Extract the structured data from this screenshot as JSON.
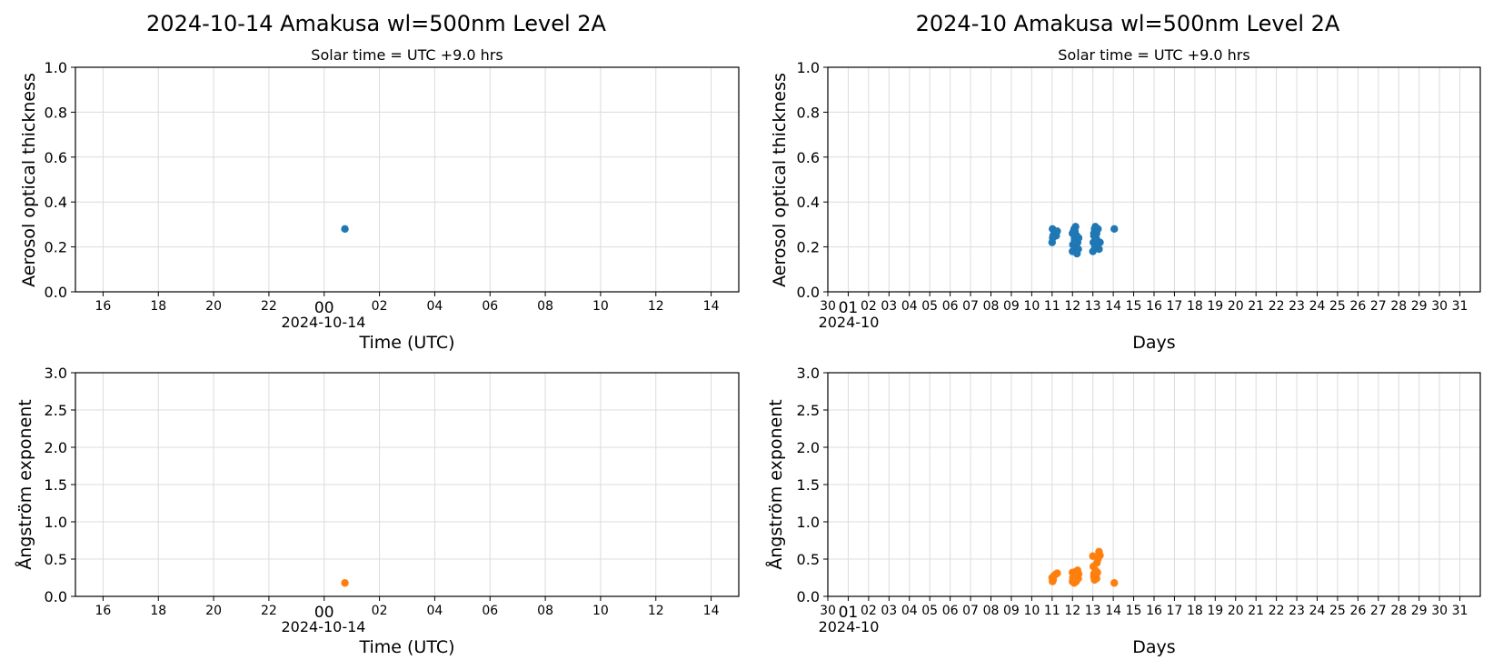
{
  "colors": {
    "aot": "#1f77b4",
    "angstrom": "#ff7f0e",
    "grid": "#dcdcdc"
  },
  "chart_data": [
    {
      "type": "scatter",
      "title": "2024-10-14  Amakusa  wl=500nm  Level 2A",
      "subtitle": "Solar time = UTC +9.0 hrs",
      "xlabel": "Time (UTC)",
      "ylabel": "Aerosol optical thickness",
      "x_unit": "hours relative to 2024-10-14 00:00 UTC",
      "xlim": [
        -9,
        15
      ],
      "ylim": [
        0,
        1
      ],
      "yticks": [
        "0.0",
        "0.2",
        "0.4",
        "0.6",
        "0.8",
        "1.0"
      ],
      "xticks": [
        "16",
        "18",
        "20",
        "22",
        "00",
        "02",
        "04",
        "06",
        "08",
        "10",
        "12",
        "14"
      ],
      "x_date_label": "2024-10-14",
      "grid": true,
      "series": [
        {
          "x": [
            0.75
          ],
          "y": [
            0.28
          ]
        }
      ]
    },
    {
      "type": "scatter",
      "title": "2024-10  Amakusa  wl=500nm  Level 2A",
      "subtitle": "Solar time = UTC +9.0 hrs",
      "xlabel": "Days",
      "ylabel": "Aerosol optical thickness",
      "x_unit": "day of October 2024",
      "xlim": [
        0,
        32
      ],
      "ylim": [
        0,
        1
      ],
      "yticks": [
        "0.0",
        "0.2",
        "0.4",
        "0.6",
        "0.8",
        "1.0"
      ],
      "xticks": [
        "30",
        "01",
        "02",
        "03",
        "04",
        "05",
        "06",
        "07",
        "08",
        "09",
        "10",
        "11",
        "12",
        "13",
        "14",
        "15",
        "16",
        "17",
        "18",
        "19",
        "20",
        "21",
        "22",
        "23",
        "24",
        "25",
        "26",
        "27",
        "28",
        "29",
        "30",
        "31"
      ],
      "x_date_label": "2024-10",
      "grid": true,
      "series": [
        {
          "x": [
            11.0,
            11.02,
            11.05,
            11.1,
            11.15,
            11.2,
            11.03,
            11.25,
            12.0,
            12.02,
            12.05,
            12.08,
            12.1,
            12.12,
            12.15,
            12.18,
            12.2,
            12.22,
            12.25,
            12.28,
            12.3,
            12.05,
            12.1,
            12.0,
            13.0,
            13.02,
            13.05,
            13.08,
            13.1,
            13.12,
            13.15,
            13.18,
            13.2,
            13.22,
            13.25,
            13.3,
            13.35,
            13.05,
            13.1,
            14.05
          ],
          "y": [
            0.22,
            0.28,
            0.25,
            0.27,
            0.26,
            0.25,
            0.24,
            0.27,
            0.18,
            0.21,
            0.26,
            0.28,
            0.24,
            0.27,
            0.29,
            0.2,
            0.25,
            0.17,
            0.22,
            0.19,
            0.24,
            0.27,
            0.23,
            0.26,
            0.18,
            0.22,
            0.25,
            0.28,
            0.27,
            0.29,
            0.24,
            0.26,
            0.23,
            0.21,
            0.28,
            0.19,
            0.22,
            0.26,
            0.2,
            0.28
          ]
        }
      ]
    },
    {
      "type": "scatter",
      "title": "",
      "subtitle": "",
      "xlabel": "Time (UTC)",
      "ylabel": "Ångström exponent",
      "x_unit": "hours relative to 2024-10-14 00:00 UTC",
      "xlim": [
        -9,
        15
      ],
      "ylim": [
        0,
        3
      ],
      "yticks": [
        "0.0",
        "0.5",
        "1.0",
        "1.5",
        "2.0",
        "2.5",
        "3.0"
      ],
      "xticks": [
        "16",
        "18",
        "20",
        "22",
        "00",
        "02",
        "04",
        "06",
        "08",
        "10",
        "12",
        "14"
      ],
      "x_date_label": "2024-10-14",
      "grid": true,
      "series": [
        {
          "x": [
            0.75
          ],
          "y": [
            0.18
          ]
        }
      ]
    },
    {
      "type": "scatter",
      "title": "",
      "subtitle": "",
      "xlabel": "Days",
      "ylabel": "Ångström exponent",
      "x_unit": "day of October 2024",
      "xlim": [
        0,
        32
      ],
      "ylim": [
        0,
        3
      ],
      "yticks": [
        "0.0",
        "0.5",
        "1.0",
        "1.5",
        "2.0",
        "2.5",
        "3.0"
      ],
      "xticks": [
        "30",
        "01",
        "02",
        "03",
        "04",
        "05",
        "06",
        "07",
        "08",
        "09",
        "10",
        "11",
        "12",
        "13",
        "14",
        "15",
        "16",
        "17",
        "18",
        "19",
        "20",
        "21",
        "22",
        "23",
        "24",
        "25",
        "26",
        "27",
        "28",
        "29",
        "30",
        "31"
      ],
      "x_date_label": "2024-10",
      "grid": true,
      "series": [
        {
          "x": [
            11.0,
            11.02,
            11.05,
            11.1,
            11.2,
            11.25,
            12.0,
            12.02,
            12.05,
            12.08,
            12.1,
            12.12,
            12.15,
            12.18,
            12.2,
            12.22,
            12.25,
            12.28,
            12.3,
            12.1,
            12.0,
            13.0,
            13.02,
            13.05,
            13.08,
            13.1,
            13.12,
            13.15,
            13.18,
            13.2,
            13.22,
            13.25,
            13.3,
            13.35,
            13.05,
            13.15,
            14.05
          ],
          "y": [
            0.25,
            0.2,
            0.22,
            0.28,
            0.3,
            0.31,
            0.2,
            0.25,
            0.3,
            0.18,
            0.22,
            0.27,
            0.33,
            0.2,
            0.25,
            0.28,
            0.35,
            0.24,
            0.3,
            0.19,
            0.32,
            0.54,
            0.4,
            0.3,
            0.22,
            0.25,
            0.35,
            0.28,
            0.24,
            0.45,
            0.32,
            0.5,
            0.6,
            0.55,
            0.26,
            0.3,
            0.18
          ]
        }
      ]
    }
  ]
}
